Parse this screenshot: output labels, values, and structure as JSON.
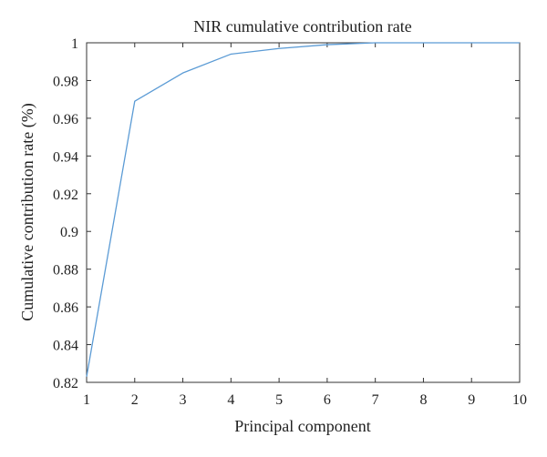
{
  "chart_data": {
    "type": "line",
    "title": "NIR cumulative contribution rate",
    "xlabel": "Principal component",
    "ylabel": "Cumulative contribution rate (%)",
    "xlim": [
      1,
      10
    ],
    "ylim": [
      0.82,
      1.0
    ],
    "x_ticks": [
      1,
      2,
      3,
      4,
      5,
      6,
      7,
      8,
      9,
      10
    ],
    "x_tick_labels": [
      "1",
      "2",
      "3",
      "4",
      "5",
      "6",
      "7",
      "8",
      "9",
      "10"
    ],
    "y_ticks": [
      0.82,
      0.84,
      0.86,
      0.88,
      0.9,
      0.92,
      0.94,
      0.96,
      0.98,
      1.0
    ],
    "y_tick_labels": [
      "0.82",
      "0.84",
      "0.86",
      "0.88",
      "0.9",
      "0.92",
      "0.94",
      "0.96",
      "0.98",
      "1"
    ],
    "grid": false,
    "line_color": "#5b9bd5",
    "series": [
      {
        "x": [
          1,
          2,
          3,
          4,
          5,
          6,
          7,
          8,
          9,
          10
        ],
        "y": [
          0.823,
          0.969,
          0.984,
          0.994,
          0.997,
          0.999,
          1.0,
          1.0,
          1.0,
          1.0
        ]
      }
    ]
  }
}
